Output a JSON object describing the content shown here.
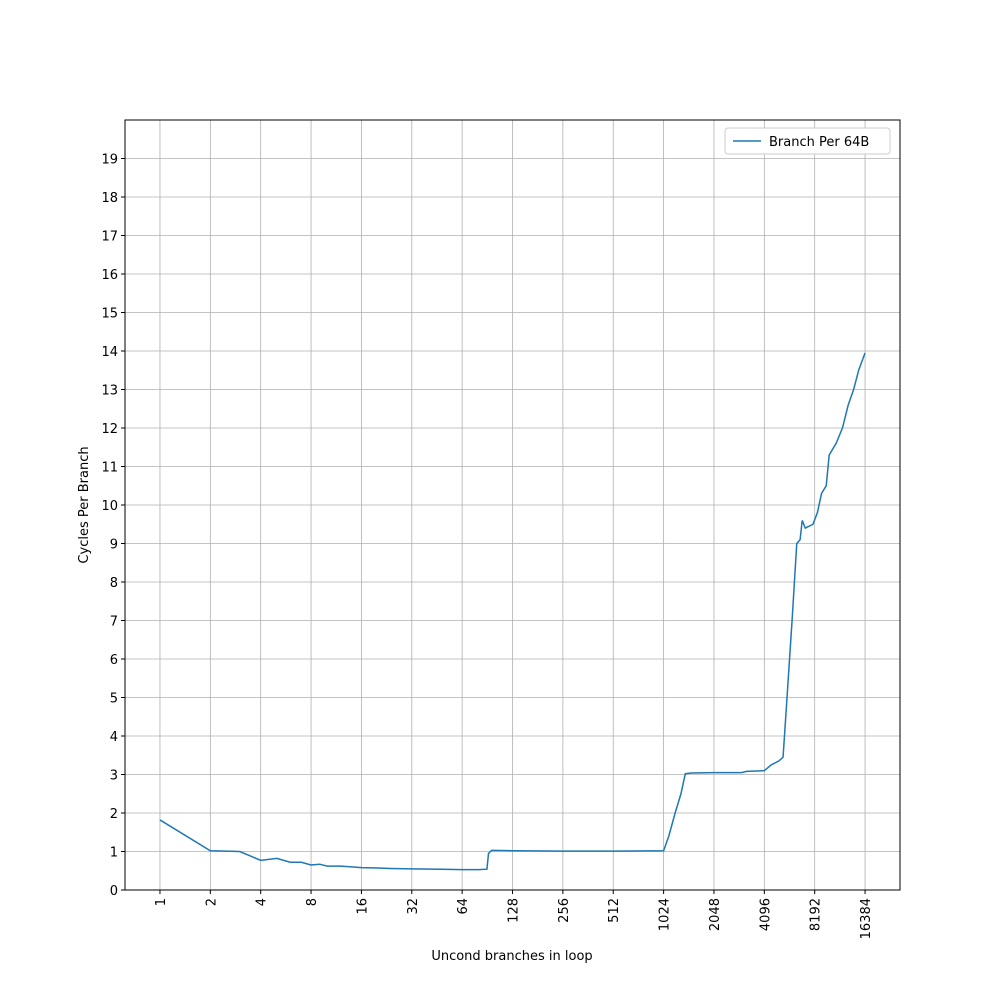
{
  "chart_data": {
    "type": "line",
    "xlabel": "Uncond branches in loop",
    "ylabel": "Cycles Per Branch",
    "xscale": "log",
    "log_base": 2,
    "x": [
      1,
      2,
      3,
      4,
      5,
      6,
      7,
      8,
      9,
      10,
      12,
      14,
      16,
      20,
      24,
      32,
      48,
      64,
      80,
      90,
      92,
      96,
      128,
      256,
      512,
      1024,
      1100,
      1200,
      1300,
      1380,
      1500,
      2048,
      3000,
      3200,
      4096,
      4500,
      5000,
      5300,
      5500,
      6000,
      6400,
      6700,
      6900,
      7200,
      8000,
      8500,
      9000,
      9600,
      10000,
      11000,
      12000,
      13000,
      14000,
      15000,
      16384
    ],
    "series": [
      {
        "name": "Branch Per 64B",
        "color": "#1f77b4",
        "values": [
          1.82,
          1.02,
          1.0,
          0.77,
          0.82,
          0.72,
          0.72,
          0.65,
          0.67,
          0.62,
          0.62,
          0.6,
          0.58,
          0.57,
          0.56,
          0.55,
          0.54,
          0.53,
          0.53,
          0.54,
          0.95,
          1.03,
          1.02,
          1.01,
          1.01,
          1.02,
          1.4,
          2.0,
          2.5,
          3.02,
          3.04,
          3.05,
          3.05,
          3.08,
          3.1,
          3.25,
          3.35,
          3.45,
          4.5,
          7.0,
          9.0,
          9.1,
          9.6,
          9.4,
          9.5,
          9.8,
          10.3,
          10.5,
          11.3,
          11.6,
          12.0,
          12.6,
          13.0,
          13.5,
          13.95
        ]
      }
    ],
    "xlim": [
      0.618,
      26500
    ],
    "xticks": [
      1,
      2,
      4,
      8,
      16,
      32,
      64,
      128,
      256,
      512,
      1024,
      2048,
      4096,
      8192,
      16384
    ],
    "ylim": [
      0,
      20
    ],
    "yticks": [
      0,
      1,
      2,
      3,
      4,
      5,
      6,
      7,
      8,
      9,
      10,
      11,
      12,
      13,
      14,
      15,
      16,
      17,
      18,
      19
    ],
    "grid": true,
    "legend": "upper right"
  }
}
